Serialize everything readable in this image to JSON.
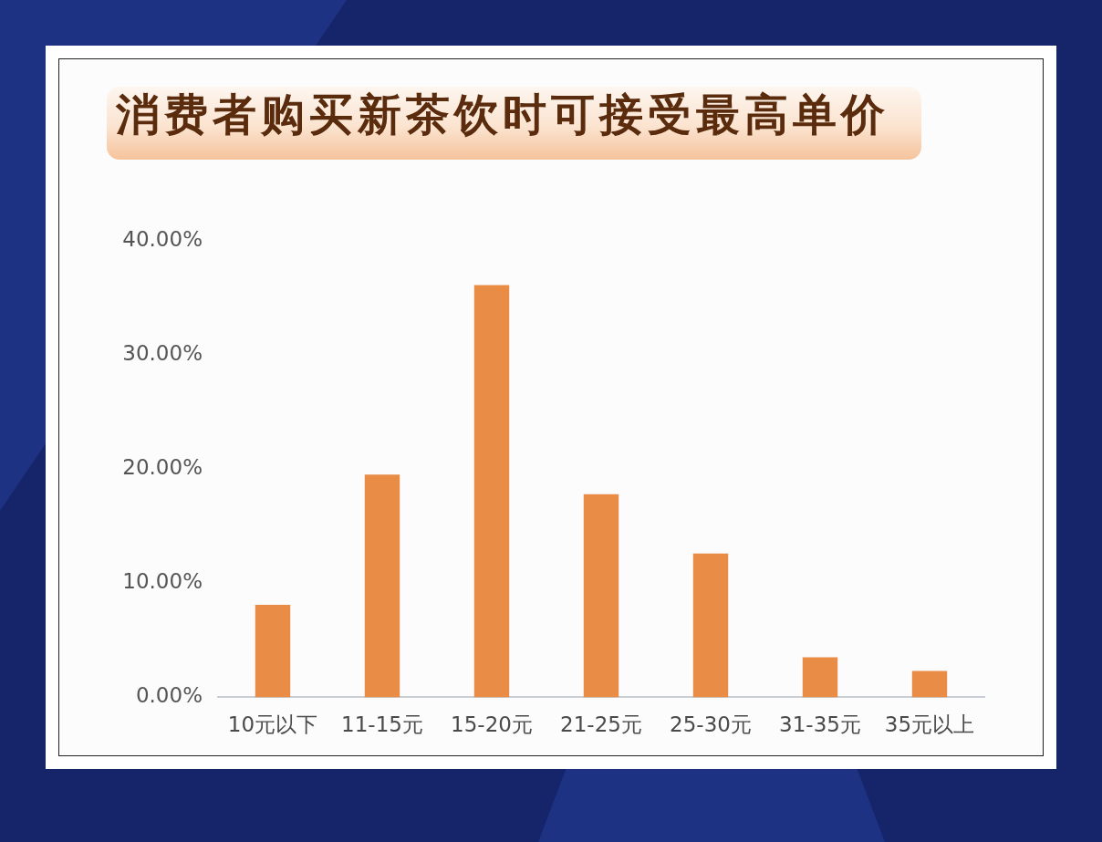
{
  "chart_data": {
    "type": "bar",
    "title": "消费者购买新茶饮时可接受最高单价",
    "categories": [
      "10元以下",
      "11-15元",
      "15-20元",
      "21-25元",
      "25-30元",
      "31-35元",
      "35元以上"
    ],
    "values": [
      8.1,
      19.5,
      36.1,
      17.8,
      12.6,
      3.5,
      2.3
    ],
    "color": "#e88c46",
    "ylim": [
      0,
      40
    ],
    "yticks": [
      {
        "value": 0,
        "label": "0.00%"
      },
      {
        "value": 10,
        "label": "10.00%"
      },
      {
        "value": 20,
        "label": "20.00%"
      },
      {
        "value": 30,
        "label": "30.00%"
      },
      {
        "value": 40,
        "label": "40.00%"
      }
    ]
  }
}
